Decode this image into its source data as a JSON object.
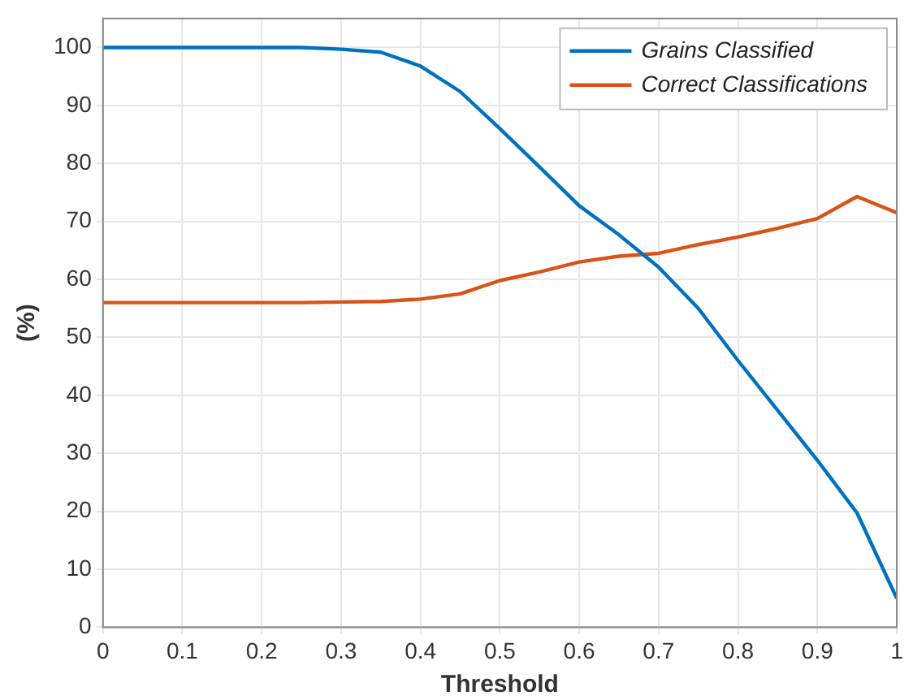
{
  "chart_data": {
    "type": "line",
    "xlabel": "Threshold",
    "ylabel": "(%)",
    "x": [
      0,
      0.05,
      0.1,
      0.15,
      0.2,
      0.25,
      0.3,
      0.35,
      0.4,
      0.45,
      0.5,
      0.55,
      0.6,
      0.65,
      0.7,
      0.75,
      0.8,
      0.85,
      0.9,
      0.95,
      1
    ],
    "series": [
      {
        "name": "Grains Classified",
        "color": "#0072bd",
        "values": [
          100,
          100,
          100,
          100,
          100,
          100,
          99.7,
          99.2,
          96.8,
          92.4,
          86,
          79.4,
          72.7,
          67.7,
          62.1,
          55,
          46,
          37.4,
          28.8,
          19.7,
          5
        ]
      },
      {
        "name": "Correct Classifications",
        "color": "#d95319",
        "values": [
          56,
          56,
          56,
          56,
          56,
          56,
          56.1,
          56.2,
          56.6,
          57.5,
          59.8,
          61.3,
          63,
          64,
          64.5,
          66,
          67.3,
          68.8,
          70.5,
          74.3,
          71.5
        ]
      }
    ],
    "xlim": [
      0,
      1
    ],
    "xticks": [
      0,
      0.1,
      0.2,
      0.3,
      0.4,
      0.5,
      0.6,
      0.7,
      0.8,
      0.9,
      1
    ],
    "ylim": [
      0,
      105
    ],
    "yticks": [
      0,
      10,
      20,
      30,
      40,
      50,
      60,
      70,
      80,
      90,
      100
    ],
    "grid": true,
    "legend": "top right",
    "marker": "none",
    "line_style": "solid"
  }
}
